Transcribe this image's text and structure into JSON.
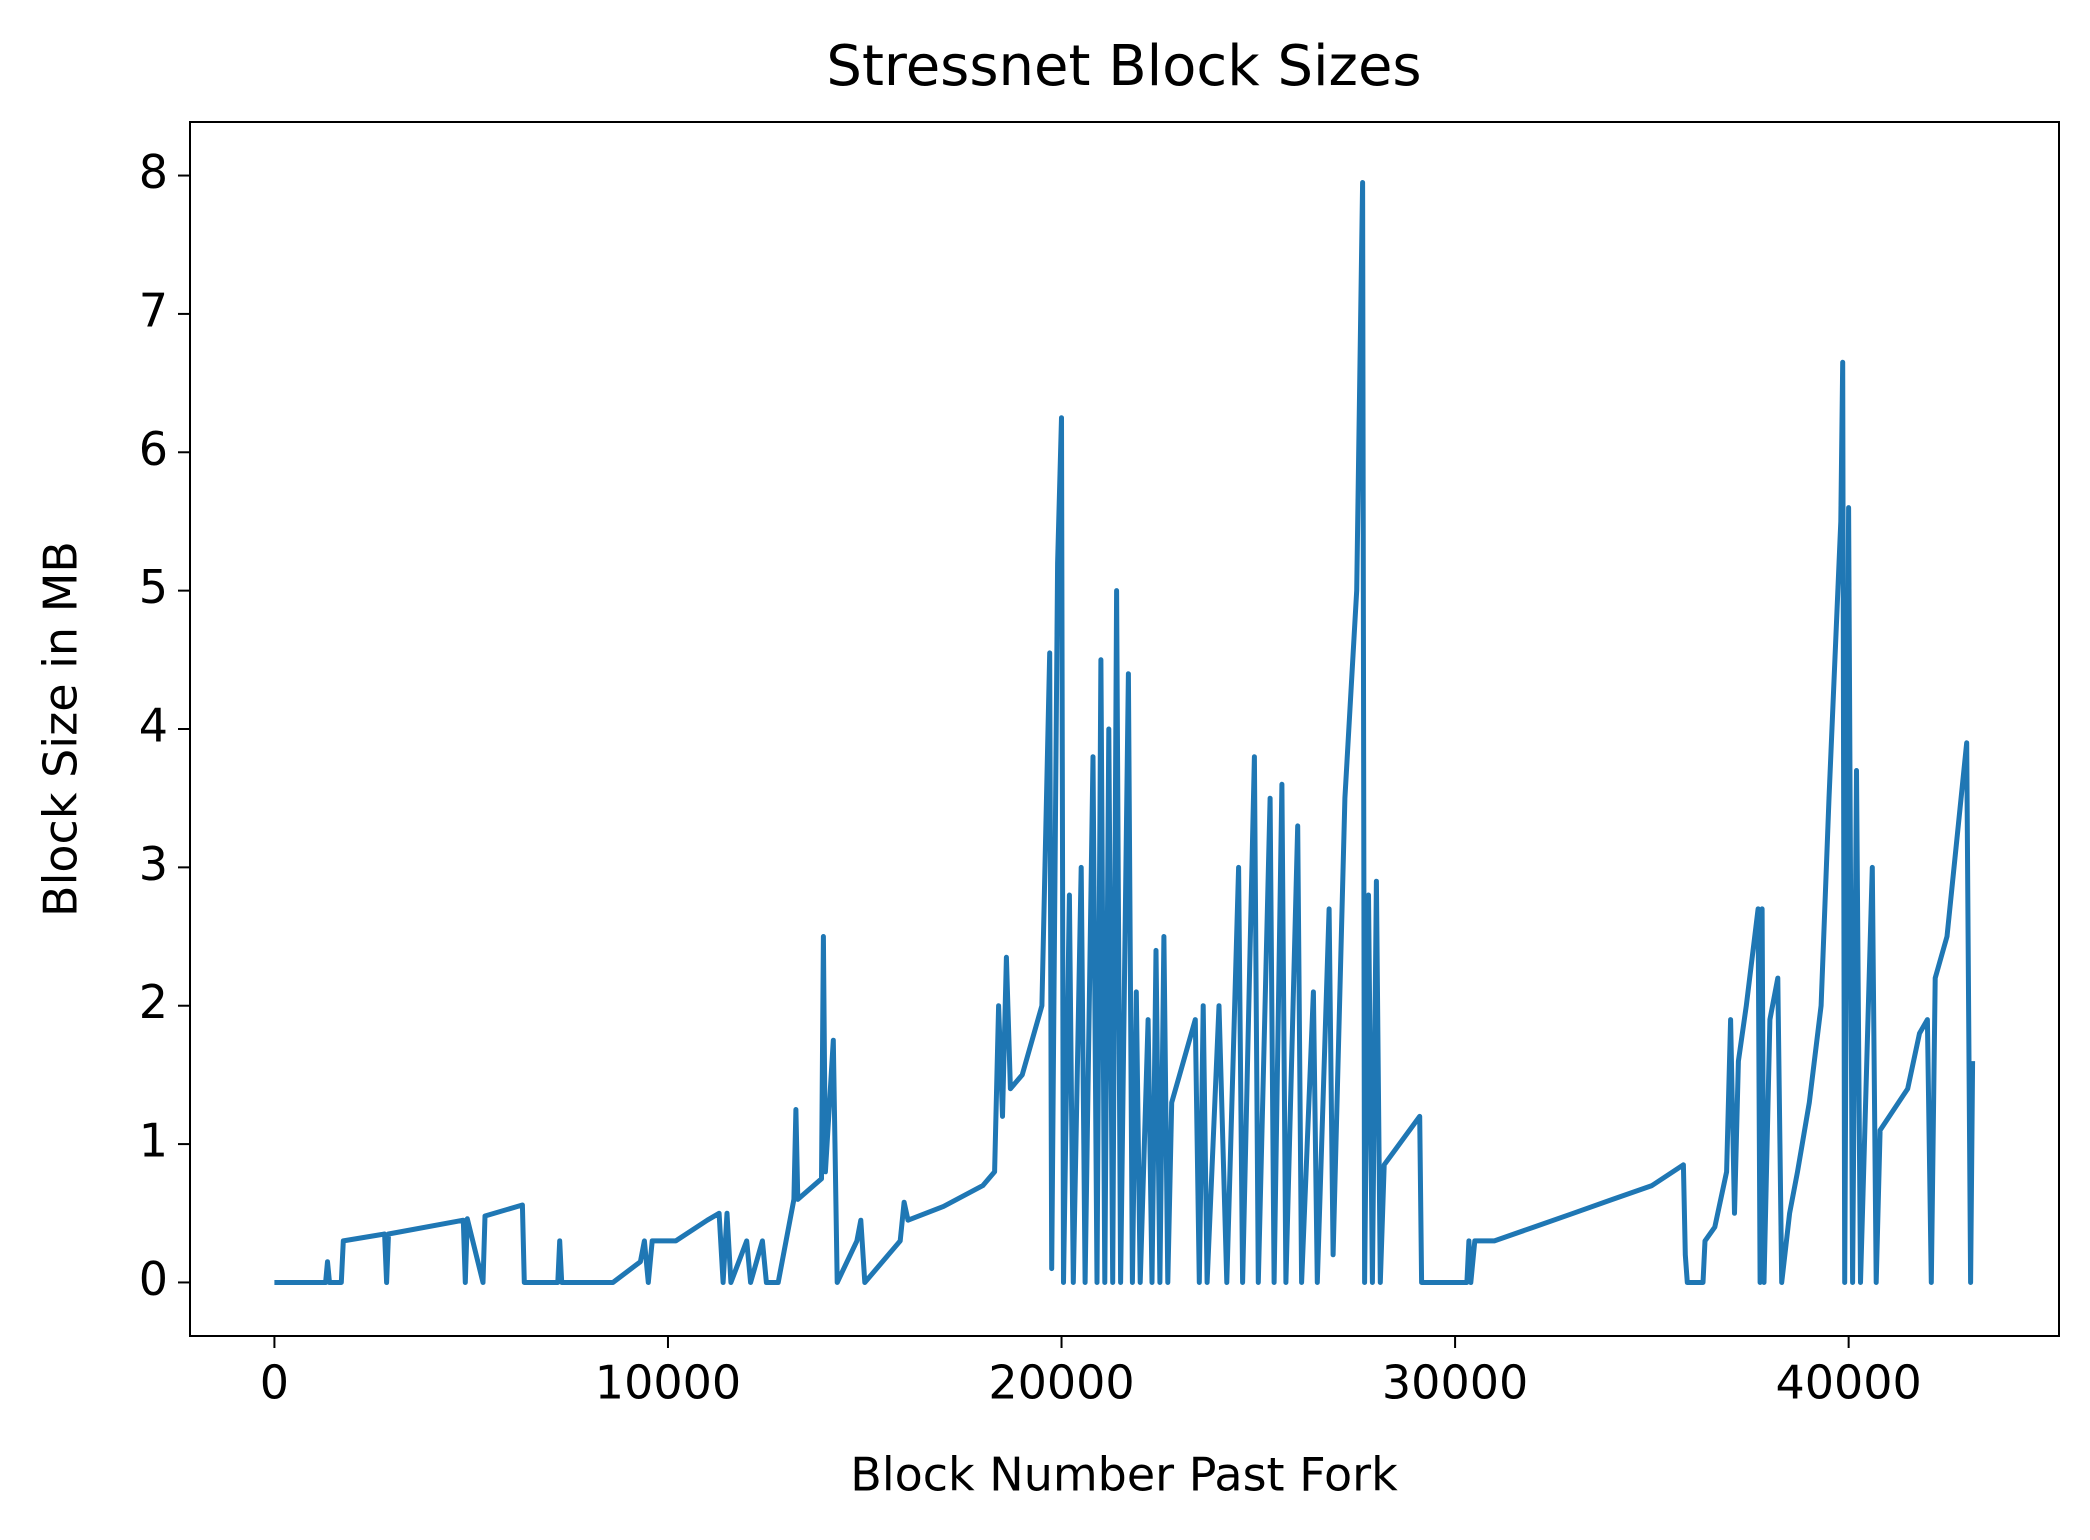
{
  "chart_data": {
    "type": "line",
    "title": "Stressnet Block Sizes",
    "x_label": "Block Number Past Fork",
    "y_label": "Block Size in MB",
    "xlim": [
      -2145,
      45345
    ],
    "ylim": [
      -0.387,
      8.387
    ],
    "xticks": [
      0,
      10000,
      20000,
      30000,
      40000
    ],
    "yticks": [
      0,
      1,
      2,
      3,
      4,
      5,
      6,
      7,
      8
    ],
    "series": [
      {
        "name": "Block Size",
        "color": "#1f77b4",
        "x": [
          0,
          1300,
          1350,
          1400,
          1700,
          1750,
          2800,
          2850,
          2900,
          4800,
          4850,
          4900,
          5300,
          5350,
          6300,
          6350,
          7200,
          7250,
          7300,
          8600,
          9300,
          9400,
          9500,
          9600,
          10200,
          11000,
          11300,
          11400,
          11500,
          11600,
          12000,
          12100,
          12400,
          12500,
          12800,
          13200,
          13250,
          13300,
          13900,
          13950,
          14000,
          14200,
          14300,
          14800,
          14900,
          15000,
          15900,
          16000,
          16100,
          17000,
          18000,
          18300,
          18400,
          18500,
          18600,
          18700,
          19000,
          19500,
          19700,
          19750,
          19900,
          20000,
          20050,
          20200,
          20300,
          20500,
          20600,
          20800,
          20900,
          21000,
          21100,
          21200,
          21300,
          21400,
          21500,
          21700,
          21800,
          21900,
          22000,
          22200,
          22300,
          22400,
          22500,
          22600,
          22700,
          22800,
          23000,
          23400,
          23500,
          23600,
          23700,
          24000,
          24200,
          24500,
          24600,
          24900,
          25000,
          25300,
          25400,
          25600,
          25700,
          26000,
          26100,
          26400,
          26500,
          26800,
          26900,
          27200,
          27500,
          27650,
          27700,
          27800,
          27900,
          28000,
          28100,
          28200,
          29100,
          29150,
          30300,
          30350,
          30400,
          30500,
          31000,
          32000,
          33000,
          34000,
          35000,
          35800,
          35850,
          35900,
          36300,
          36350,
          36600,
          36900,
          37000,
          37100,
          37200,
          37400,
          37700,
          37750,
          37800,
          37850,
          38000,
          38200,
          38300,
          38500,
          38700,
          39000,
          39300,
          39500,
          39800,
          39850,
          39900,
          40000,
          40100,
          40200,
          40300,
          40600,
          40700,
          40800,
          41500,
          41800,
          42000,
          42100,
          42200,
          42500,
          43000,
          43100,
          43150
        ],
        "values": [
          0,
          0,
          0.15,
          0,
          0,
          0.3,
          0.35,
          0,
          0.35,
          0.45,
          0,
          0.46,
          0,
          0.48,
          0.56,
          0,
          0,
          0.3,
          0,
          0,
          0.15,
          0.3,
          0,
          0.3,
          0.3,
          0.45,
          0.5,
          0,
          0.5,
          0,
          0.3,
          0,
          0.3,
          0,
          0,
          0.6,
          1.25,
          0.6,
          0.75,
          2.5,
          0.8,
          1.75,
          0,
          0.3,
          0.45,
          0,
          0.3,
          0.58,
          0.45,
          0.55,
          0.7,
          0.8,
          2.0,
          1.2,
          2.35,
          1.4,
          1.5,
          2.0,
          4.55,
          0.1,
          5.2,
          6.25,
          0,
          2.8,
          0,
          3.0,
          0,
          3.8,
          0,
          4.5,
          0,
          4.0,
          0,
          5.0,
          0,
          4.4,
          0,
          2.1,
          0,
          1.9,
          0,
          2.4,
          0,
          2.5,
          0,
          1.3,
          1.5,
          1.9,
          0,
          2.0,
          0,
          2.0,
          0,
          3.0,
          0,
          3.8,
          0,
          3.5,
          0,
          3.6,
          0,
          3.3,
          0,
          2.1,
          0,
          2.7,
          0.2,
          3.5,
          5.0,
          7.95,
          0,
          2.8,
          0,
          2.9,
          0,
          0.85,
          1.2,
          0,
          0,
          0.3,
          0,
          0.3,
          0.3,
          0.4,
          0.5,
          0.6,
          0.7,
          0.85,
          0.2,
          0,
          0,
          0.3,
          0.4,
          0.8,
          1.9,
          0.5,
          1.6,
          2.0,
          2.7,
          0,
          2.7,
          0,
          1.9,
          2.2,
          0,
          0.5,
          0.8,
          1.3,
          2.0,
          3.5,
          5.5,
          6.65,
          0,
          5.6,
          0,
          3.7,
          0,
          3.0,
          0,
          1.1,
          1.4,
          1.8,
          1.9,
          0,
          2.2,
          2.5,
          3.9,
          0,
          1.6
        ]
      }
    ]
  }
}
